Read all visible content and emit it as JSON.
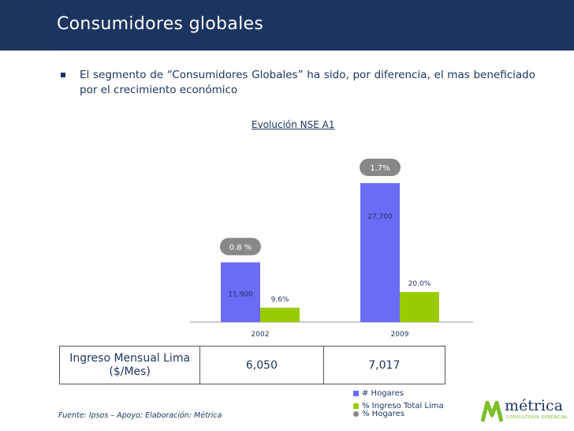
{
  "slide": {
    "title": "Consumidores globales",
    "bullet": "El segmento de “Consumidores Globales” ha sido, por diferencia, el mas beneficiado por el crecimiento económico"
  },
  "chart_data": {
    "type": "bar",
    "title": "Evolución NSE A1",
    "categories": [
      "2002",
      "2009"
    ],
    "series": [
      {
        "name": "# Hogares",
        "values": [
          11900,
          27700
        ],
        "labels": [
          "11,900",
          "27,700"
        ],
        "color": "#6b6bf5"
      },
      {
        "name": "% Ingreso Total Lima",
        "values": [
          9.6,
          20.0
        ],
        "labels": [
          "9.6%",
          "20.0%"
        ],
        "color": "#99cc00"
      },
      {
        "name": "% Hogares",
        "values": [
          0.8,
          1.7
        ],
        "labels": [
          "0.8 %",
          "1.7%"
        ],
        "color": "#888888"
      }
    ],
    "ylim_hogares": [
      0,
      32000
    ],
    "ylim_ingreso": [
      0,
      50
    ]
  },
  "table": {
    "label_line1": "Ingreso Mensual Lima",
    "label_line2": "($/Mes)",
    "values": [
      "6,050",
      "7,017"
    ]
  },
  "legend": {
    "items": [
      {
        "label": "# Hogares",
        "color": "#6b6bf5",
        "shape": "square"
      },
      {
        "label": "% Ingreso Total Lima",
        "color": "#99cc00",
        "shape": "square"
      },
      {
        "label": "% Hogares",
        "color": "#888888",
        "shape": "circle"
      }
    ]
  },
  "footer": {
    "source": "Fuente: Ipsos – Apoyo; Elaboración: Métrica"
  },
  "logo": {
    "name": "métrica",
    "subtitle": "CONSULTORÍA GERENCIAL",
    "icon": "metrica-logo-icon",
    "color_primary": "#1c3560",
    "color_accent": "#7bbf2a"
  }
}
